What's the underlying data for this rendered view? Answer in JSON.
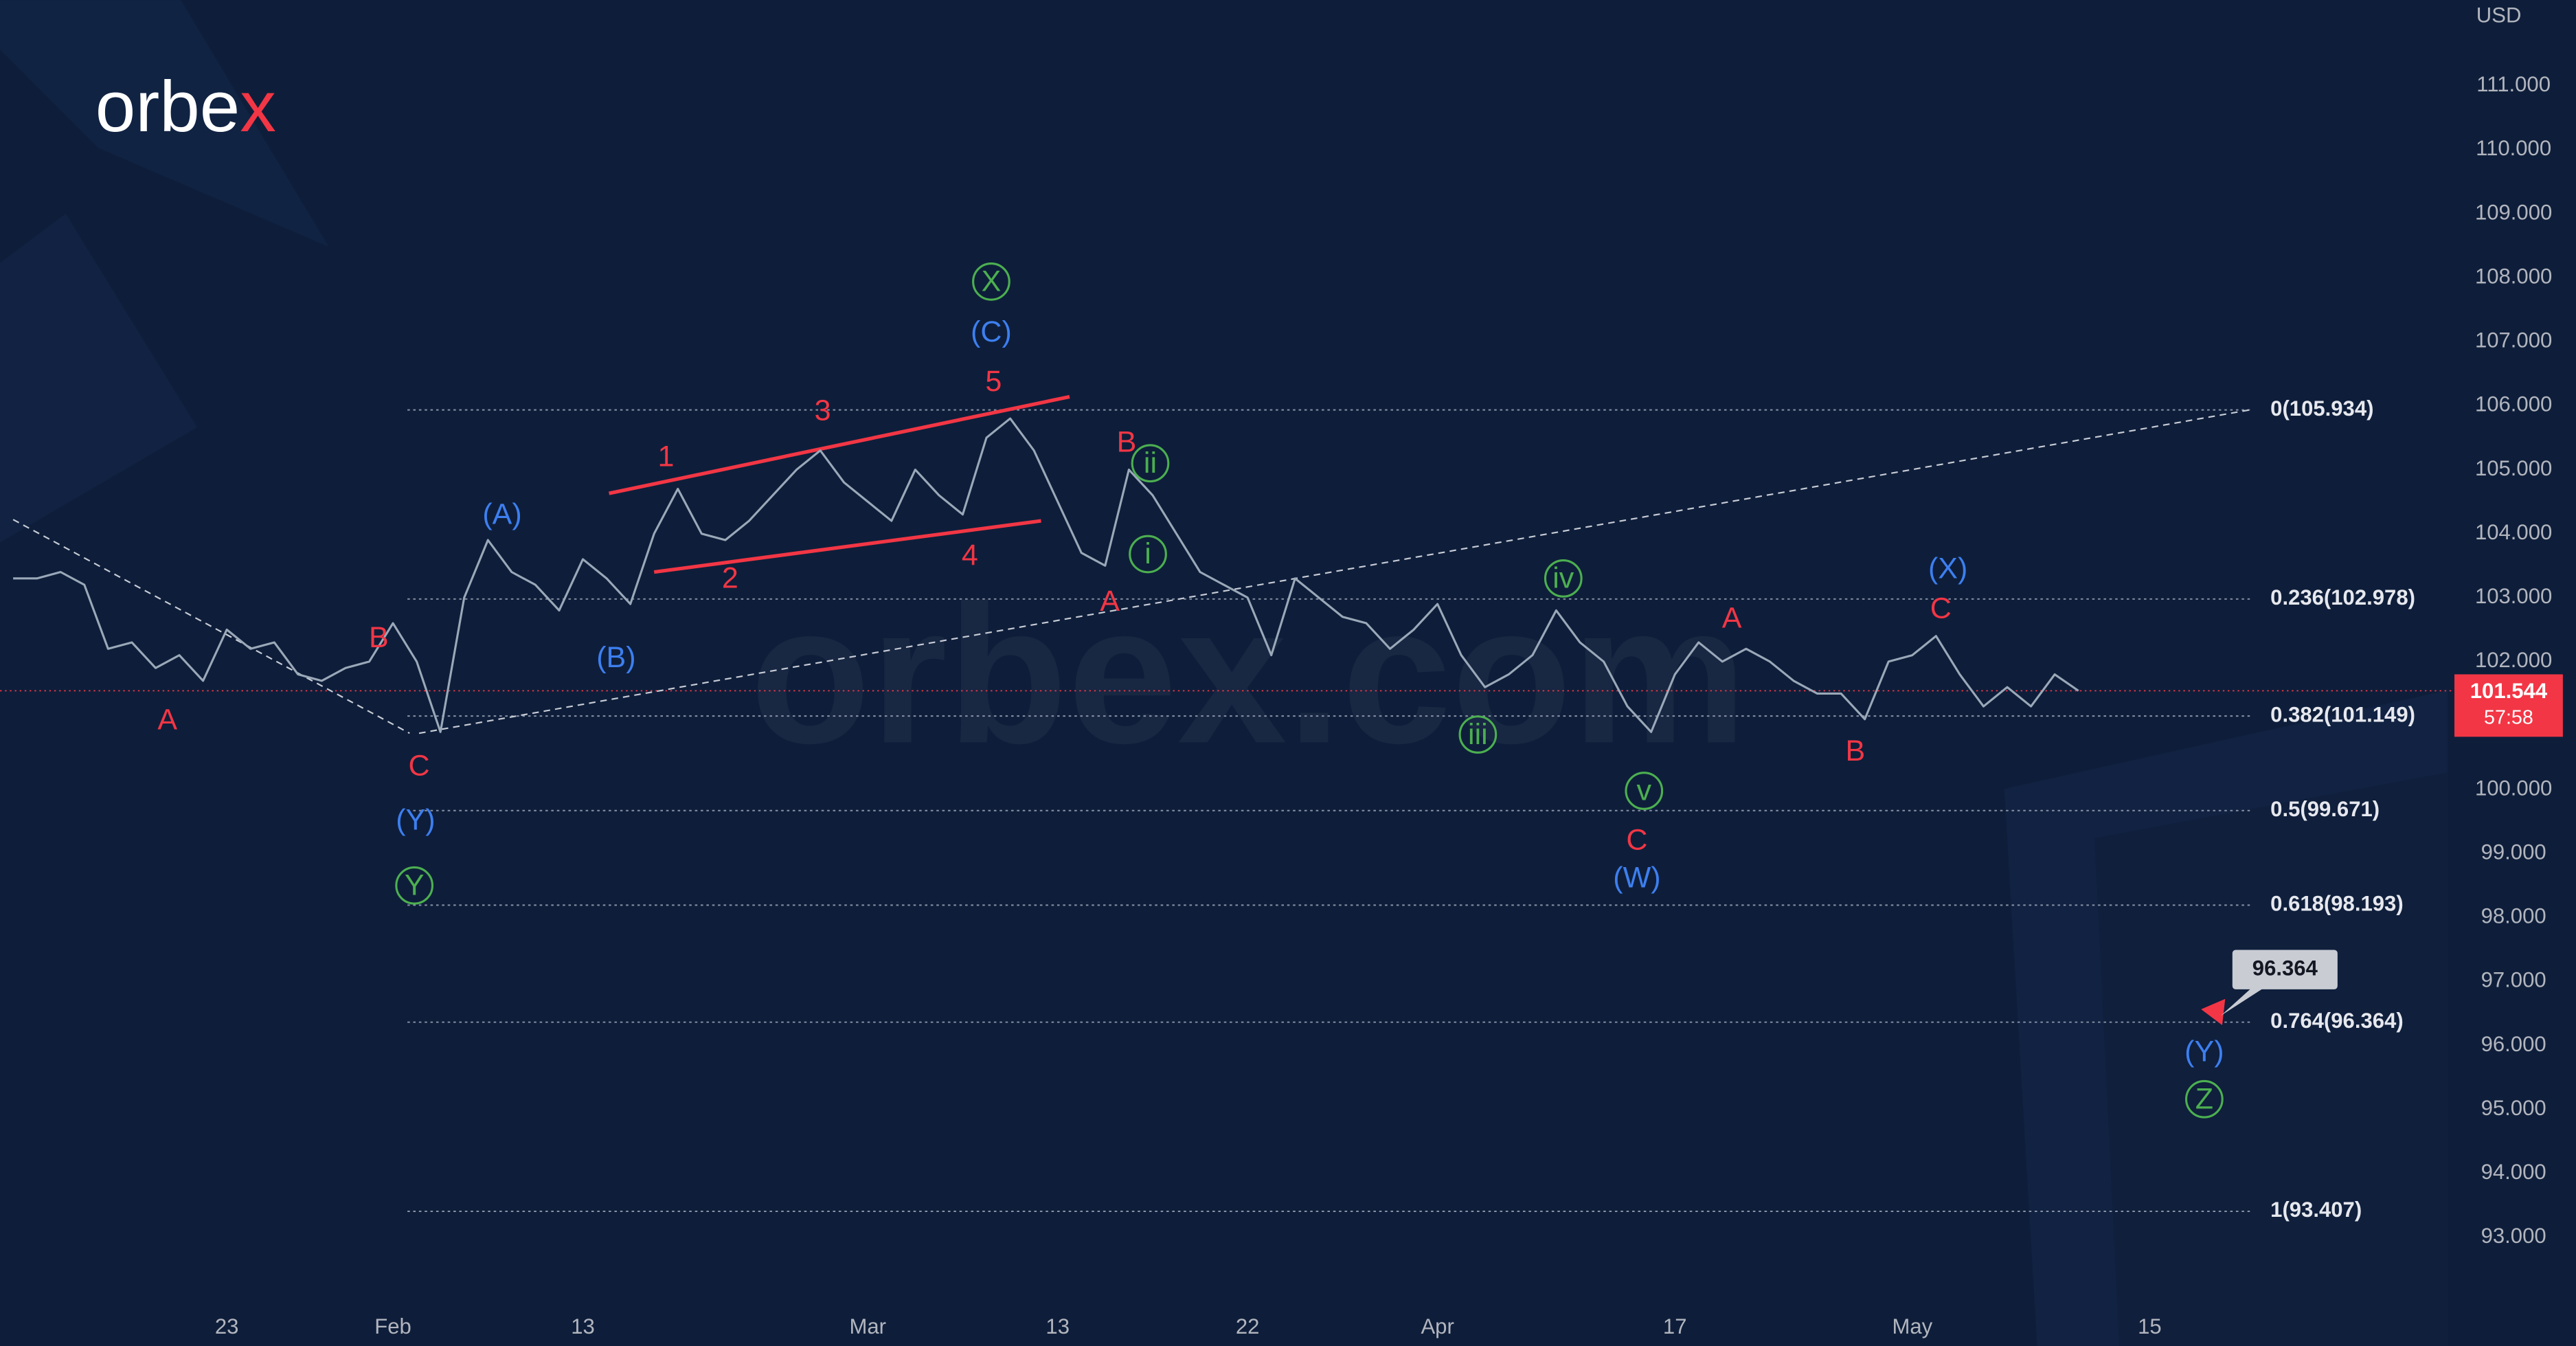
{
  "chart_data": {
    "type": "line",
    "logo": {
      "text": "orbe",
      "accent": "x"
    },
    "watermark": "orbex.com",
    "currency": "USD",
    "categories": [
      null,
      null,
      null,
      null,
      null,
      null,
      null,
      null,
      null,
      "23",
      null,
      null,
      null,
      null,
      null,
      null,
      "Feb",
      null,
      null,
      null,
      null,
      null,
      null,
      null,
      "13",
      null,
      null,
      null,
      null,
      null,
      null,
      null,
      null,
      null,
      null,
      null,
      "Mar",
      null,
      null,
      null,
      null,
      null,
      null,
      null,
      "13",
      null,
      null,
      null,
      null,
      null,
      null,
      null,
      "22",
      null,
      null,
      null,
      null,
      null,
      null,
      null,
      "Apr",
      null,
      null,
      null,
      null,
      null,
      null,
      null,
      null,
      null,
      "17",
      null,
      null,
      null,
      null,
      null,
      null,
      null,
      null,
      null,
      "May",
      null,
      null,
      null,
      null,
      null,
      null,
      null,
      null,
      null,
      "15",
      null,
      null,
      null
    ],
    "series": [
      {
        "color": "#9aa8b8",
        "values": [
          103.3,
          103.3,
          103.4,
          103.2,
          102.2,
          102.3,
          101.9,
          102.1,
          101.7,
          102.5,
          102.2,
          102.3,
          101.8,
          101.7,
          101.9,
          102.0,
          102.6,
          102.0,
          100.9,
          103.0,
          103.9,
          103.4,
          103.2,
          102.8,
          103.6,
          103.3,
          102.9,
          104.0,
          104.7,
          104.0,
          103.9,
          104.2,
          104.6,
          105.0,
          105.3,
          104.8,
          104.5,
          104.2,
          105.0,
          104.6,
          104.3,
          105.5,
          105.8,
          105.3,
          104.5,
          103.7,
          103.5,
          105.0,
          104.6,
          104.0,
          103.4,
          103.2,
          103.0,
          102.1,
          103.3,
          103.0,
          102.7,
          102.6,
          102.2,
          102.5,
          102.9,
          102.1,
          101.6,
          101.8,
          102.1,
          102.8,
          102.3,
          102.0,
          101.3,
          100.9,
          101.8,
          102.3,
          102.0,
          102.2,
          102.0,
          101.7,
          101.5,
          101.5,
          101.1,
          102.0,
          102.1,
          102.4,
          101.8,
          101.3,
          101.6,
          101.3,
          101.8,
          101.544,
          null,
          null,
          null,
          null,
          null,
          null
        ]
      },
      {
        "color": "#f23645",
        "values": [
          null,
          null,
          null,
          null,
          null,
          null,
          null,
          null,
          null,
          null,
          null,
          null,
          null,
          null,
          null,
          null,
          null,
          null,
          null,
          null,
          null,
          null,
          null,
          null,
          null,
          null,
          null,
          null,
          null,
          null,
          null,
          null,
          null,
          null,
          null,
          null,
          null,
          null,
          null,
          null,
          null,
          null,
          null,
          null,
          null,
          null,
          null,
          null,
          null,
          null,
          null,
          null,
          null,
          null,
          null,
          null,
          null,
          null,
          null,
          null,
          null,
          null,
          null,
          null,
          null,
          null,
          null,
          null,
          null,
          null,
          null,
          null,
          null,
          null,
          null,
          null,
          null,
          null,
          null,
          null,
          null,
          null,
          null,
          null,
          null,
          null,
          null,
          101.544,
          null,
          null,
          null,
          null,
          null,
          96.364
        ]
      }
    ],
    "ylim": [
      91.92,
      112.34
    ],
    "yticks": [
      {
        "value": 111,
        "label": "111.000"
      },
      {
        "value": 110,
        "label": "110.000"
      },
      {
        "value": 109,
        "label": "109.000"
      },
      {
        "value": 108,
        "label": "108.000"
      },
      {
        "value": 107,
        "label": "107.000"
      },
      {
        "value": 106,
        "label": "106.000"
      },
      {
        "value": 105,
        "label": "105.000"
      },
      {
        "value": 104,
        "label": "104.000"
      },
      {
        "value": 103,
        "label": "103.000"
      },
      {
        "value": 102,
        "label": "102.000"
      },
      {
        "value": 100,
        "label": "100.000"
      },
      {
        "value": 99,
        "label": "99.000"
      },
      {
        "value": 98,
        "label": "98.000"
      },
      {
        "value": 97,
        "label": "97.000"
      },
      {
        "value": 96,
        "label": "96.000"
      },
      {
        "value": 95,
        "label": "95.000"
      },
      {
        "value": 94,
        "label": "94.000"
      },
      {
        "value": 93,
        "label": "93.000"
      }
    ],
    "last_price": {
      "value": 101.544,
      "countdown": "57:58",
      "color": "#f23645"
    },
    "target": {
      "value": 96.364
    },
    "fib_levels": [
      {
        "label": "0(105.934)",
        "value": 105.934
      },
      {
        "label": "0.236(102.978)",
        "value": 102.978
      },
      {
        "label": "0.382(101.149)",
        "value": 101.149
      },
      {
        "label": "0.5(99.671)",
        "value": 99.671
      },
      {
        "label": "0.618(98.193)",
        "value": 98.193
      },
      {
        "label": "0.764(96.364)",
        "value": 96.364
      },
      {
        "label": "1(93.407)",
        "value": 93.407
      }
    ],
    "trend_lines": [
      {
        "color": "#f23645",
        "dash": false,
        "from": [
          25.1,
          104.63
        ],
        "to": [
          44.5,
          106.14
        ]
      },
      {
        "color": "#f23645",
        "dash": false,
        "from": [
          27,
          103.4
        ],
        "to": [
          43.3,
          104.2
        ]
      },
      {
        "color": "#c8ccd6",
        "dash": true,
        "from": [
          0,
          104.22
        ],
        "to": [
          16.7,
          100.88
        ]
      },
      {
        "color": "#c8ccd6",
        "dash": true,
        "from": [
          17.1,
          100.88
        ],
        "to": [
          94.3,
          105.94
        ]
      }
    ],
    "annotations": [
      {
        "text": "A",
        "at": 6.5,
        "price": 101.09,
        "color": "#f23645"
      },
      {
        "text": "B",
        "at": 15.4,
        "price": 102.37,
        "color": "#f23645"
      },
      {
        "text": "C",
        "at": 17.1,
        "price": 100.37,
        "color": "#f23645"
      },
      {
        "text": "1",
        "at": 27.5,
        "price": 105.2,
        "color": "#f23645"
      },
      {
        "text": "2",
        "at": 30.2,
        "price": 103.3,
        "color": "#f23645"
      },
      {
        "text": "3",
        "at": 34.1,
        "price": 105.92,
        "color": "#f23645"
      },
      {
        "text": "4",
        "at": 40.3,
        "price": 103.66,
        "color": "#f23645"
      },
      {
        "text": "5",
        "at": 41.3,
        "price": 106.38,
        "color": "#f23645"
      },
      {
        "text": "A",
        "at": 46.2,
        "price": 102.94,
        "color": "#f23645"
      },
      {
        "text": "B",
        "at": 46.9,
        "price": 105.43,
        "color": "#f23645"
      },
      {
        "text": "C",
        "at": 68.4,
        "price": 99.21,
        "color": "#f23645"
      },
      {
        "text": "A",
        "at": 72.4,
        "price": 102.68,
        "color": "#f23645"
      },
      {
        "text": "B",
        "at": 77.6,
        "price": 100.6,
        "color": "#f23645"
      },
      {
        "text": "C",
        "at": 81.2,
        "price": 102.83,
        "color": "#f23645"
      },
      {
        "text": "(A)",
        "at": 20.6,
        "price": 104.3,
        "color": "#3d7ff0"
      },
      {
        "text": "(B)",
        "at": 25.4,
        "price": 102.06,
        "color": "#3d7ff0"
      },
      {
        "text": "(Y)",
        "at": 16.95,
        "price": 99.52,
        "color": "#3d7ff0"
      },
      {
        "text": "(C)",
        "at": 41.2,
        "price": 107.15,
        "color": "#3d7ff0"
      },
      {
        "text": "(W)",
        "at": 68.4,
        "price": 98.62,
        "color": "#3d7ff0"
      },
      {
        "text": "(X)",
        "at": 81.5,
        "price": 103.45,
        "color": "#3d7ff0"
      },
      {
        "text": "(Y)",
        "at": 92.3,
        "price": 95.9,
        "color": "#3d7ff0"
      },
      {
        "text": "Y",
        "at": 16.9,
        "price": 98.5,
        "color": "#4caf50",
        "circled": true
      },
      {
        "text": "X",
        "at": 41.2,
        "price": 107.94,
        "color": "#4caf50",
        "circled": true
      },
      {
        "text": "ii",
        "at": 47.9,
        "price": 105.1,
        "color": "#4caf50",
        "circled": true
      },
      {
        "text": "i",
        "at": 47.8,
        "price": 103.68,
        "color": "#4caf50",
        "circled": true
      },
      {
        "text": "iii",
        "at": 61.7,
        "price": 100.86,
        "color": "#4caf50",
        "circled": true
      },
      {
        "text": "iv",
        "at": 65.3,
        "price": 103.3,
        "color": "#4caf50",
        "circled": true
      },
      {
        "text": "v",
        "at": 68.7,
        "price": 99.98,
        "color": "#4caf50",
        "circled": true
      },
      {
        "text": "Z",
        "at": 92.3,
        "price": 95.16,
        "color": "#4caf50",
        "circled": true
      }
    ]
  }
}
